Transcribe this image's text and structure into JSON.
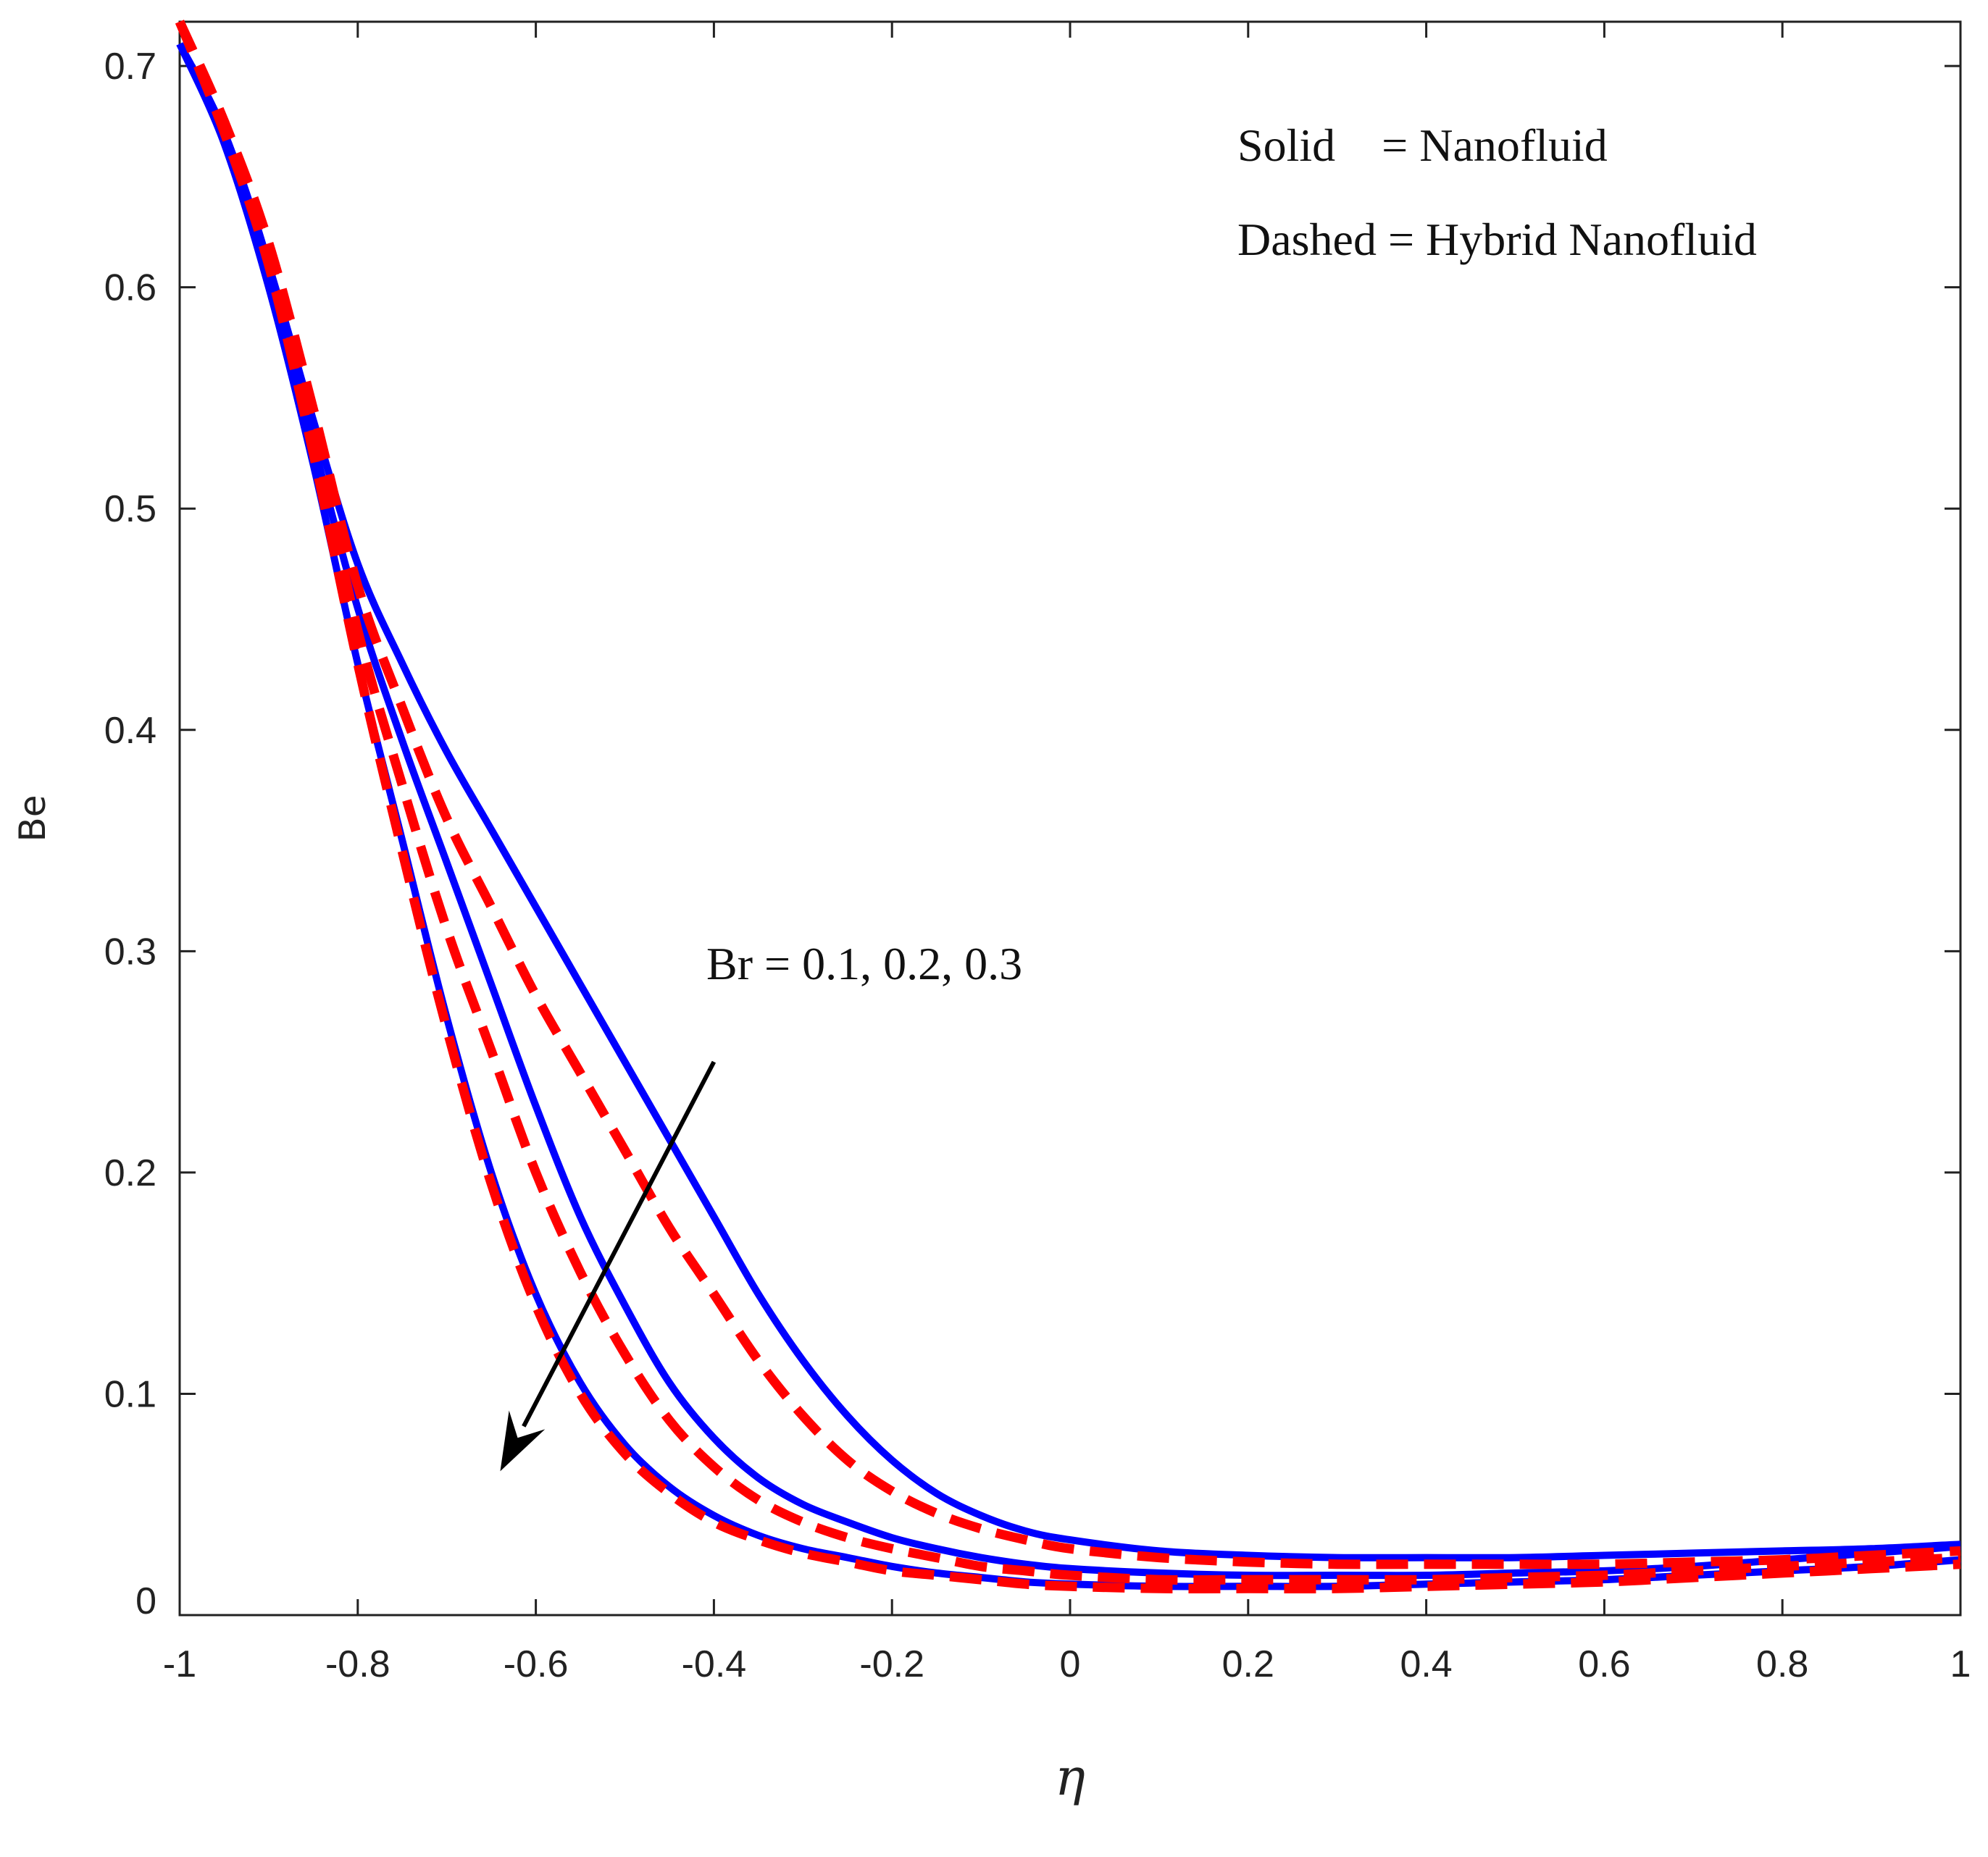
{
  "chart_data": {
    "type": "line",
    "title": "",
    "xlabel": "η",
    "ylabel": "Be",
    "xlim": [
      -1,
      1
    ],
    "ylim": [
      0,
      0.72
    ],
    "xticks": [
      -1,
      -0.8,
      -0.6,
      -0.4,
      -0.2,
      0,
      0.2,
      0.4,
      0.6,
      0.8,
      1
    ],
    "xtick_labels": [
      "-1",
      "-0.8",
      "-0.6",
      "-0.4",
      "-0.2",
      "0",
      "0.2",
      "0.4",
      "0.6",
      "0.8",
      "1"
    ],
    "yticks": [
      0,
      0.1,
      0.2,
      0.3,
      0.4,
      0.5,
      0.6,
      0.7
    ],
    "ytick_labels": [
      "0",
      "0.1",
      "0.2",
      "0.3",
      "0.4",
      "0.5",
      "0.6",
      "0.7"
    ],
    "grid": false,
    "legend": {
      "solid_label": "Solid    = Nanofluid",
      "dashed_label": "Dashed = Hybrid Nanofluid",
      "placement": "top-right"
    },
    "annotation": {
      "text": "Br = 0.1, 0.2, 0.3",
      "arrow_from": [
        -0.4,
        0.25
      ],
      "arrow_to": [
        -0.64,
        0.065
      ]
    },
    "colors": {
      "nanofluid": "#0000ff",
      "hybrid": "#ff0000",
      "arrow": "#000000",
      "axis": "#222222"
    },
    "series": [
      {
        "name": "Nanofluid, Br = 0.1",
        "style": "solid",
        "color": "#0000ff",
        "x": [
          -1,
          -0.95,
          -0.9,
          -0.85,
          -0.8,
          -0.75,
          -0.7,
          -0.65,
          -0.6,
          -0.55,
          -0.5,
          -0.45,
          -0.4,
          -0.35,
          -0.3,
          -0.25,
          -0.2,
          -0.15,
          -0.1,
          -0.05,
          0,
          0.1,
          0.2,
          0.3,
          0.4,
          0.5,
          0.6,
          0.7,
          0.8,
          0.9,
          1
        ],
        "y": [
          0.71,
          0.67,
          0.61,
          0.54,
          0.475,
          0.43,
          0.39,
          0.355,
          0.32,
          0.285,
          0.25,
          0.215,
          0.18,
          0.145,
          0.115,
          0.09,
          0.07,
          0.055,
          0.045,
          0.038,
          0.034,
          0.029,
          0.027,
          0.026,
          0.026,
          0.026,
          0.027,
          0.028,
          0.029,
          0.03,
          0.032
        ]
      },
      {
        "name": "Nanofluid, Br = 0.2",
        "style": "solid",
        "color": "#0000ff",
        "x": [
          -1,
          -0.95,
          -0.9,
          -0.85,
          -0.8,
          -0.75,
          -0.7,
          -0.65,
          -0.6,
          -0.55,
          -0.5,
          -0.45,
          -0.4,
          -0.35,
          -0.3,
          -0.25,
          -0.2,
          -0.15,
          -0.1,
          -0.05,
          0,
          0.1,
          0.2,
          0.3,
          0.4,
          0.5,
          0.6,
          0.7,
          0.8,
          0.9,
          1
        ],
        "y": [
          0.71,
          0.67,
          0.61,
          0.53,
          0.455,
          0.395,
          0.34,
          0.285,
          0.23,
          0.18,
          0.14,
          0.105,
          0.08,
          0.062,
          0.05,
          0.042,
          0.035,
          0.03,
          0.026,
          0.023,
          0.021,
          0.019,
          0.018,
          0.018,
          0.018,
          0.019,
          0.02,
          0.022,
          0.025,
          0.028,
          0.031
        ]
      },
      {
        "name": "Nanofluid, Br = 0.3",
        "style": "solid",
        "color": "#0000ff",
        "x": [
          -1,
          -0.95,
          -0.9,
          -0.85,
          -0.8,
          -0.75,
          -0.7,
          -0.65,
          -0.6,
          -0.55,
          -0.5,
          -0.45,
          -0.4,
          -0.35,
          -0.3,
          -0.25,
          -0.2,
          -0.15,
          -0.1,
          -0.05,
          0,
          0.1,
          0.2,
          0.3,
          0.4,
          0.5,
          0.6,
          0.7,
          0.8,
          0.9,
          1
        ],
        "y": [
          0.71,
          0.665,
          0.6,
          0.52,
          0.43,
          0.35,
          0.27,
          0.2,
          0.145,
          0.105,
          0.077,
          0.058,
          0.045,
          0.036,
          0.03,
          0.026,
          0.022,
          0.019,
          0.017,
          0.015,
          0.014,
          0.013,
          0.013,
          0.013,
          0.014,
          0.015,
          0.016,
          0.018,
          0.02,
          0.022,
          0.025
        ]
      },
      {
        "name": "Hybrid Nanofluid, Br = 0.1",
        "style": "dashed",
        "color": "#ff0000",
        "x": [
          -1,
          -0.95,
          -0.9,
          -0.85,
          -0.8,
          -0.75,
          -0.7,
          -0.65,
          -0.6,
          -0.55,
          -0.5,
          -0.45,
          -0.4,
          -0.35,
          -0.3,
          -0.25,
          -0.2,
          -0.15,
          -0.1,
          -0.05,
          0,
          0.1,
          0.2,
          0.3,
          0.4,
          0.5,
          0.6,
          0.7,
          0.8,
          0.9,
          1
        ],
        "y": [
          0.72,
          0.675,
          0.62,
          0.545,
          0.465,
          0.41,
          0.36,
          0.32,
          0.28,
          0.245,
          0.21,
          0.175,
          0.145,
          0.115,
          0.09,
          0.07,
          0.056,
          0.046,
          0.039,
          0.034,
          0.03,
          0.026,
          0.024,
          0.023,
          0.023,
          0.023,
          0.023,
          0.024,
          0.025,
          0.027,
          0.029
        ]
      },
      {
        "name": "Hybrid Nanofluid, Br = 0.2",
        "style": "dashed",
        "color": "#ff0000",
        "x": [
          -1,
          -0.95,
          -0.9,
          -0.85,
          -0.8,
          -0.75,
          -0.7,
          -0.65,
          -0.6,
          -0.55,
          -0.5,
          -0.45,
          -0.4,
          -0.35,
          -0.3,
          -0.25,
          -0.2,
          -0.15,
          -0.1,
          -0.05,
          0,
          0.1,
          0.2,
          0.3,
          0.4,
          0.5,
          0.6,
          0.7,
          0.8,
          0.9,
          1
        ],
        "y": [
          0.72,
          0.672,
          0.615,
          0.535,
          0.445,
          0.375,
          0.31,
          0.255,
          0.2,
          0.155,
          0.118,
          0.088,
          0.067,
          0.052,
          0.042,
          0.035,
          0.03,
          0.026,
          0.022,
          0.02,
          0.018,
          0.016,
          0.016,
          0.016,
          0.016,
          0.017,
          0.018,
          0.02,
          0.022,
          0.024,
          0.026
        ]
      },
      {
        "name": "Hybrid Nanofluid, Br = 0.3",
        "style": "dashed",
        "color": "#ff0000",
        "x": [
          -1,
          -0.95,
          -0.9,
          -0.85,
          -0.8,
          -0.75,
          -0.7,
          -0.65,
          -0.6,
          -0.55,
          -0.5,
          -0.45,
          -0.4,
          -0.35,
          -0.3,
          -0.25,
          -0.2,
          -0.15,
          -0.1,
          -0.05,
          0,
          0.1,
          0.2,
          0.3,
          0.4,
          0.5,
          0.6,
          0.7,
          0.8,
          0.9,
          1
        ],
        "y": [
          0.72,
          0.67,
          0.61,
          0.525,
          0.43,
          0.345,
          0.265,
          0.195,
          0.14,
          0.1,
          0.073,
          0.055,
          0.042,
          0.034,
          0.028,
          0.024,
          0.02,
          0.018,
          0.016,
          0.014,
          0.013,
          0.012,
          0.012,
          0.012,
          0.013,
          0.014,
          0.015,
          0.017,
          0.019,
          0.021,
          0.023
        ]
      }
    ]
  }
}
